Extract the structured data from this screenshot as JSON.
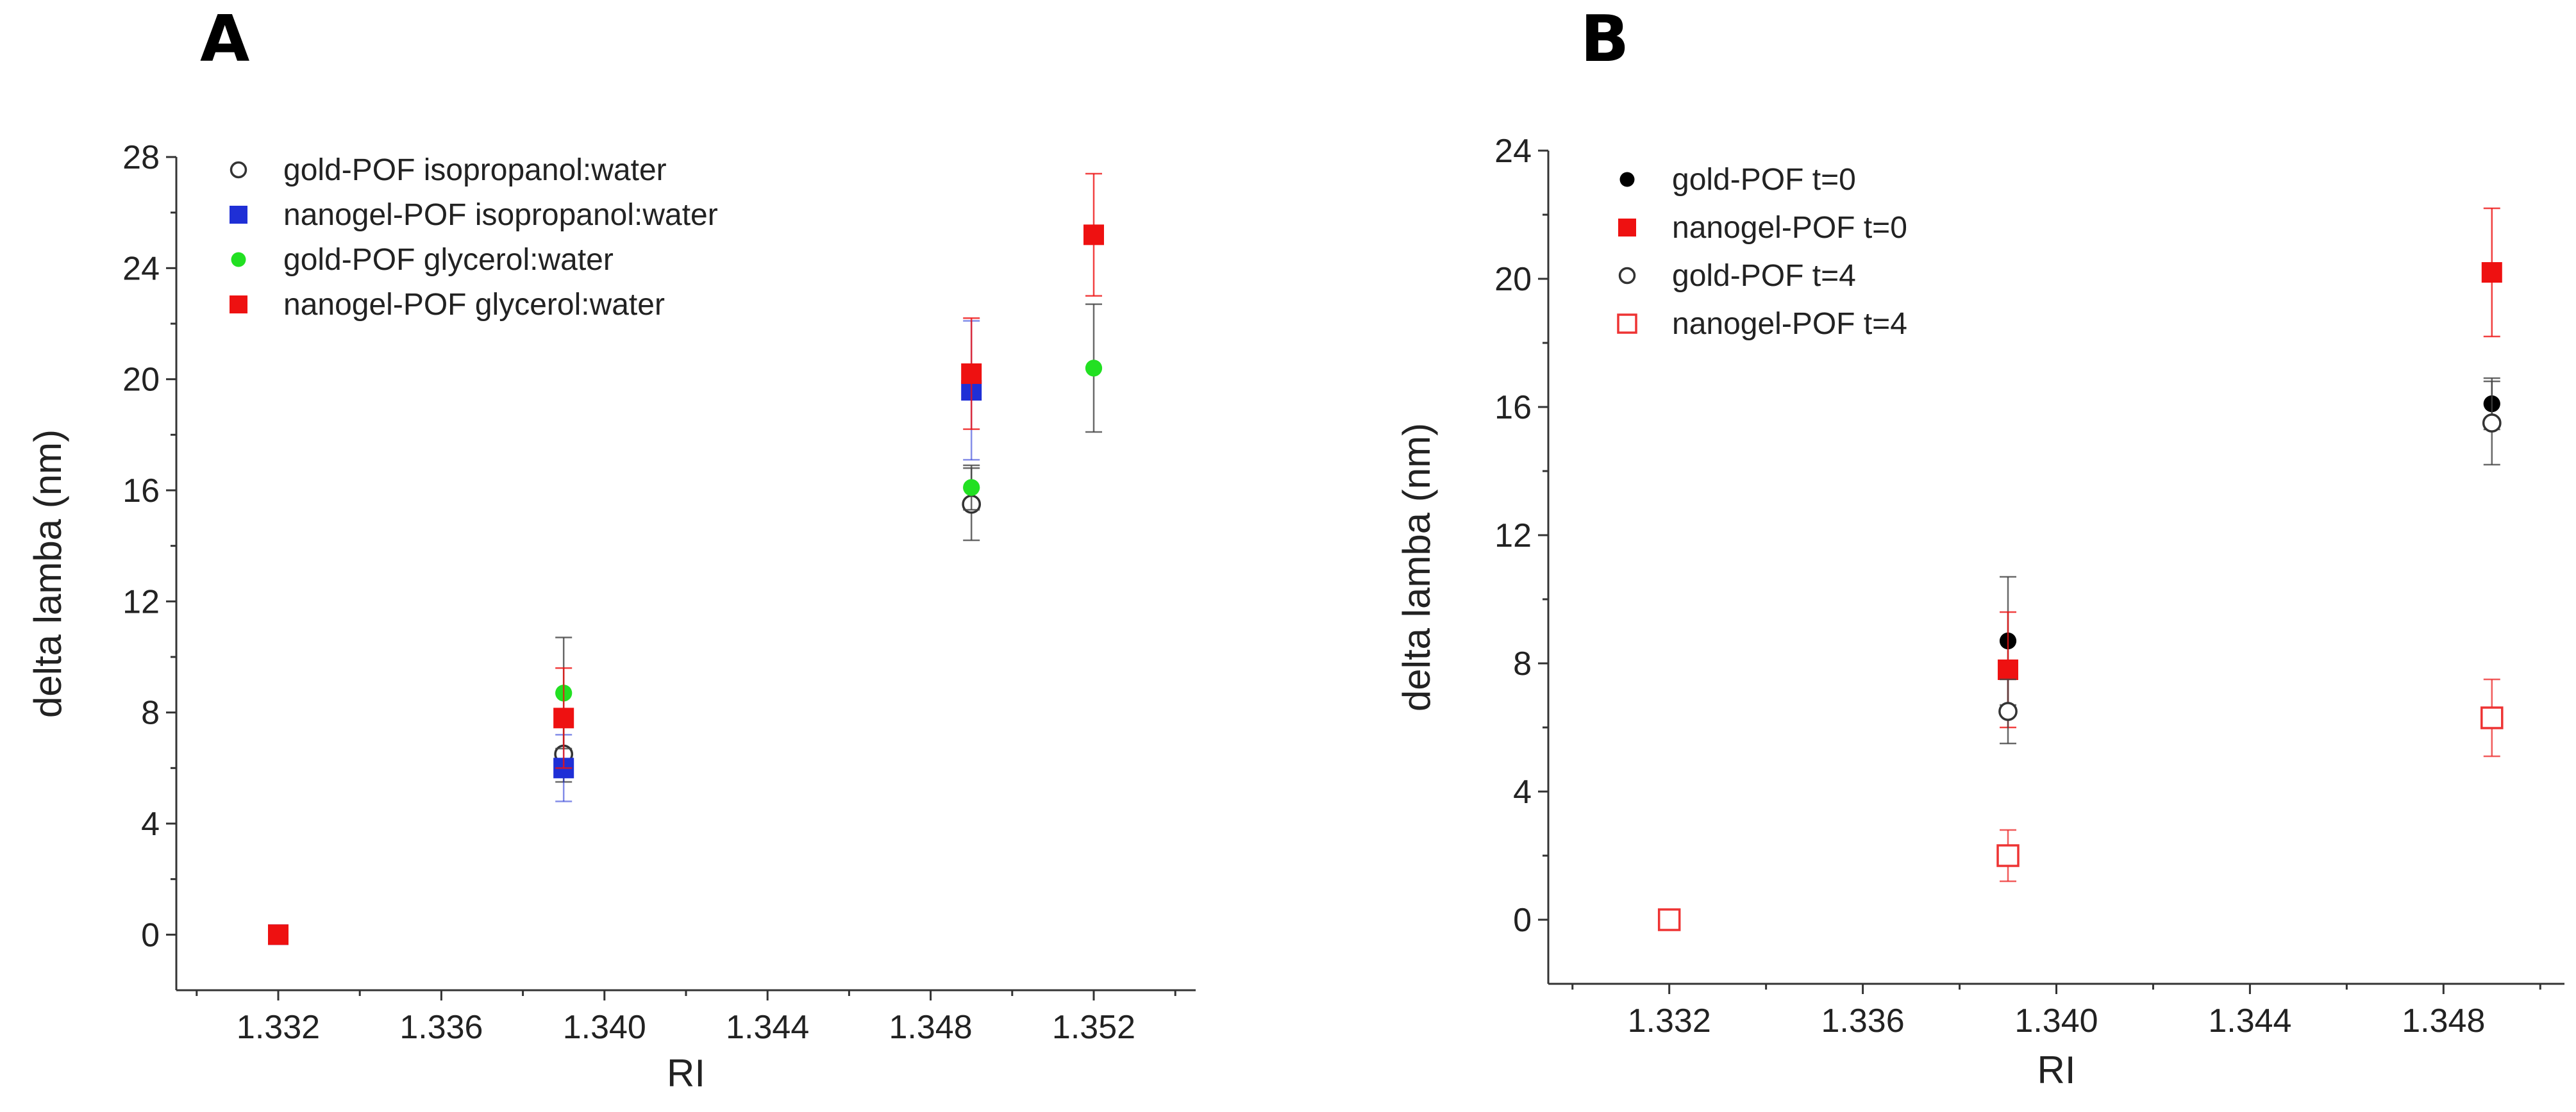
{
  "chart_data": [
    {
      "panel": "A",
      "type": "scatter",
      "xlabel": "RI",
      "ylabel": "delta lamba (nm)",
      "xlim": [
        1.3295,
        1.3545
      ],
      "ylim": [
        -2,
        28
      ],
      "xticks": [
        1.332,
        1.336,
        1.34,
        1.344,
        1.348,
        1.352
      ],
      "xtick_labels": [
        "1.332",
        "1.336",
        "1.340",
        "1.344",
        "1.348",
        "1.352"
      ],
      "yticks": [
        0,
        4,
        8,
        12,
        16,
        20,
        24,
        28
      ],
      "ytick_labels": [
        "0",
        "4",
        "8",
        "12",
        "16",
        "20",
        "24",
        "28"
      ],
      "legend_position": "top-left",
      "series": [
        {
          "name": "gold-POF isopropanol:water",
          "marker": "circle-open",
          "color": "#333333",
          "x": [
            1.332,
            1.339,
            1.349
          ],
          "y": [
            0,
            6.5,
            15.5
          ],
          "err": [
            0,
            1.0,
            1.3
          ]
        },
        {
          "name": "nanogel-POF isopropanol:water",
          "marker": "square",
          "color": "#1f2fd6",
          "x": [
            1.332,
            1.339,
            1.349
          ],
          "y": [
            0,
            6.0,
            19.6
          ],
          "err": [
            0,
            1.2,
            2.5
          ]
        },
        {
          "name": "gold-POF glycerol:water",
          "marker": "circle",
          "color": "#22e022",
          "x": [
            1.332,
            1.339,
            1.349,
            1.352
          ],
          "y": [
            0,
            8.7,
            16.1,
            20.4
          ],
          "err": [
            0,
            2.0,
            0.8,
            2.3
          ]
        },
        {
          "name": "nanogel-POF glycerol:water",
          "marker": "square",
          "color": "#ee1111",
          "x": [
            1.332,
            1.339,
            1.349,
            1.352
          ],
          "y": [
            0,
            7.8,
            20.2,
            25.2
          ],
          "err": [
            0,
            1.8,
            2.0,
            2.2
          ]
        }
      ]
    },
    {
      "panel": "B",
      "type": "scatter",
      "xlabel": "RI",
      "ylabel": "delta lamba (nm)",
      "xlim": [
        1.3295,
        1.3505
      ],
      "ylim": [
        -2,
        24
      ],
      "xticks": [
        1.332,
        1.336,
        1.34,
        1.344,
        1.348
      ],
      "xtick_labels": [
        "1.332",
        "1.336",
        "1.340",
        "1.344",
        "1.348"
      ],
      "yticks": [
        0,
        4,
        8,
        12,
        16,
        20,
        24
      ],
      "ytick_labels": [
        "0",
        "4",
        "8",
        "12",
        "16",
        "20",
        "24"
      ],
      "legend_position": "top-left",
      "series": [
        {
          "name": "gold-POF t=0",
          "marker": "circle",
          "color": "#000000",
          "x": [
            1.339,
            1.349
          ],
          "y": [
            8.7,
            16.1
          ],
          "err": [
            2.0,
            0.8
          ]
        },
        {
          "name": "nanogel-POF t=0",
          "marker": "square",
          "color": "#ee1111",
          "x": [
            1.339,
            1.349
          ],
          "y": [
            7.8,
            20.2
          ],
          "err": [
            1.8,
            2.0
          ]
        },
        {
          "name": "gold-POF t=4",
          "marker": "circle-open",
          "color": "#333333",
          "x": [
            1.339,
            1.349
          ],
          "y": [
            6.5,
            15.5
          ],
          "err": [
            1.0,
            1.3
          ]
        },
        {
          "name": "nanogel-POF t=4",
          "marker": "square-open",
          "color": "#ee3333",
          "x": [
            1.332,
            1.339,
            1.349
          ],
          "y": [
            0,
            2.0,
            6.3
          ],
          "err": [
            0,
            0.8,
            1.2
          ]
        }
      ]
    }
  ]
}
